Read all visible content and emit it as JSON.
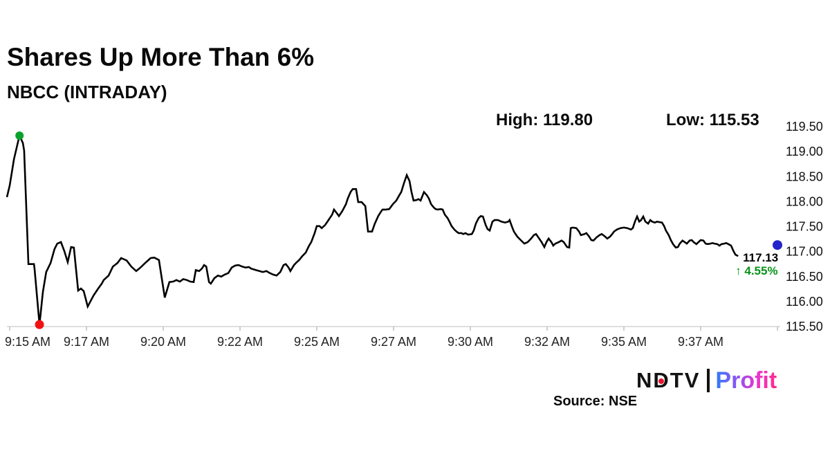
{
  "header": {
    "title": "Shares Up More Than 6%",
    "subtitle": "NBCC (INTRADAY)"
  },
  "stats": {
    "high": "High: 119.80",
    "low": "Low: 115.53"
  },
  "footer": {
    "source": "Source: NSE"
  },
  "logo": {
    "ndtv_n": "N",
    "ndtv_d": "D",
    "ndtv_tv": "TV",
    "profit": "Profit",
    "red_dot_color": "#e8142a"
  },
  "chart_data": {
    "type": "line",
    "title": "NBCC (INTRADAY)",
    "x_unit": "minutes after 9:15 AM",
    "high_value": 119.8,
    "low_value": 115.53,
    "last_price_label": "117.13",
    "change_label": "↑ 4.55%",
    "change_color": "#089419",
    "line_color": "#000000",
    "grid": "off",
    "ylim": [
      115.5,
      119.5
    ],
    "y_ticks": [
      "119.50",
      "119.00",
      "118.50",
      "118.00",
      "117.50",
      "117.00",
      "116.50",
      "116.00",
      "115.50"
    ],
    "x_ticks": [
      {
        "t": 0,
        "label": "9:15 AM"
      },
      {
        "t": 2.5,
        "label": "9:17 AM"
      },
      {
        "t": 5,
        "label": "9:20 AM"
      },
      {
        "t": 7.5,
        "label": "9:22 AM"
      },
      {
        "t": 10,
        "label": "9:25 AM"
      },
      {
        "t": 12.5,
        "label": "9:27 AM"
      },
      {
        "t": 15,
        "label": "9:30 AM"
      },
      {
        "t": 17.5,
        "label": "9:32 AM"
      },
      {
        "t": 20,
        "label": "9:35 AM"
      },
      {
        "t": 22.5,
        "label": "9:37 AM"
      },
      {
        "t": 25,
        "label": ""
      }
    ],
    "markers": {
      "session_high": {
        "t": 0.32,
        "p": 119.32,
        "color": "#0aa22c"
      },
      "session_low": {
        "t": 0.97,
        "p": 115.54,
        "color": "#f21111"
      },
      "last": {
        "t": 25.0,
        "p": 117.13,
        "color": "#2424cb"
      }
    },
    "points": [
      [
        -0.09,
        118.09
      ],
      [
        0,
        118.32
      ],
      [
        0.14,
        118.85
      ],
      [
        0.32,
        119.32
      ],
      [
        0.43,
        119.17
      ],
      [
        0.47,
        119.02
      ],
      [
        0.54,
        117.88
      ],
      [
        0.61,
        116.75
      ],
      [
        0.79,
        116.75
      ],
      [
        0.81,
        116.65
      ],
      [
        0.97,
        115.54
      ],
      [
        1.08,
        116.19
      ],
      [
        1.19,
        116.59
      ],
      [
        1.33,
        116.77
      ],
      [
        1.46,
        117.05
      ],
      [
        1.55,
        117.16
      ],
      [
        1.67,
        117.19
      ],
      [
        1.78,
        117.01
      ],
      [
        1.89,
        116.79
      ],
      [
        2.0,
        117.09
      ],
      [
        2.09,
        117.08
      ],
      [
        2.23,
        116.22
      ],
      [
        2.32,
        116.26
      ],
      [
        2.41,
        116.21
      ],
      [
        2.54,
        115.9
      ],
      [
        2.73,
        116.12
      ],
      [
        2.88,
        116.26
      ],
      [
        3.0,
        116.36
      ],
      [
        3.06,
        116.43
      ],
      [
        3.22,
        116.52
      ],
      [
        3.36,
        116.7
      ],
      [
        3.51,
        116.77
      ],
      [
        3.63,
        116.87
      ],
      [
        3.81,
        116.82
      ],
      [
        3.96,
        116.7
      ],
      [
        4.12,
        116.61
      ],
      [
        4.26,
        116.68
      ],
      [
        4.41,
        116.77
      ],
      [
        4.59,
        116.87
      ],
      [
        4.71,
        116.88
      ],
      [
        4.86,
        116.83
      ],
      [
        5.05,
        116.08
      ],
      [
        5.2,
        116.39
      ],
      [
        5.32,
        116.4
      ],
      [
        5.43,
        116.43
      ],
      [
        5.54,
        116.4
      ],
      [
        5.65,
        116.45
      ],
      [
        5.77,
        116.43
      ],
      [
        5.88,
        116.4
      ],
      [
        5.99,
        116.39
      ],
      [
        6.06,
        116.63
      ],
      [
        6.17,
        116.61
      ],
      [
        6.26,
        116.66
      ],
      [
        6.33,
        116.73
      ],
      [
        6.4,
        116.7
      ],
      [
        6.49,
        116.39
      ],
      [
        6.55,
        116.36
      ],
      [
        6.67,
        116.47
      ],
      [
        6.78,
        116.52
      ],
      [
        6.89,
        116.5
      ],
      [
        7.0,
        116.54
      ],
      [
        7.12,
        116.57
      ],
      [
        7.23,
        116.68
      ],
      [
        7.34,
        116.72
      ],
      [
        7.45,
        116.73
      ],
      [
        7.57,
        116.7
      ],
      [
        7.68,
        116.68
      ],
      [
        7.79,
        116.69
      ],
      [
        7.86,
        116.66
      ],
      [
        8.02,
        116.63
      ],
      [
        8.13,
        116.61
      ],
      [
        8.24,
        116.59
      ],
      [
        8.36,
        116.61
      ],
      [
        8.47,
        116.57
      ],
      [
        8.58,
        116.54
      ],
      [
        8.69,
        116.52
      ],
      [
        8.81,
        116.59
      ],
      [
        8.92,
        116.73
      ],
      [
        8.99,
        116.75
      ],
      [
        9.08,
        116.68
      ],
      [
        9.14,
        116.61
      ],
      [
        9.26,
        116.73
      ],
      [
        9.32,
        116.77
      ],
      [
        9.44,
        116.84
      ],
      [
        9.53,
        116.91
      ],
      [
        9.64,
        116.98
      ],
      [
        9.75,
        117.12
      ],
      [
        9.82,
        117.19
      ],
      [
        9.93,
        117.37
      ],
      [
        10.0,
        117.51
      ],
      [
        10.09,
        117.51
      ],
      [
        10.16,
        117.47
      ],
      [
        10.27,
        117.53
      ],
      [
        10.38,
        117.63
      ],
      [
        10.5,
        117.74
      ],
      [
        10.56,
        117.84
      ],
      [
        10.65,
        117.77
      ],
      [
        10.72,
        117.71
      ],
      [
        10.83,
        117.81
      ],
      [
        10.95,
        117.95
      ],
      [
        11.01,
        118.06
      ],
      [
        11.1,
        118.19
      ],
      [
        11.17,
        118.25
      ],
      [
        11.28,
        118.25
      ],
      [
        11.35,
        117.99
      ],
      [
        11.46,
        117.99
      ],
      [
        11.58,
        117.91
      ],
      [
        11.67,
        117.4
      ],
      [
        11.8,
        117.4
      ],
      [
        11.89,
        117.56
      ],
      [
        12.0,
        117.71
      ],
      [
        12.07,
        117.78
      ],
      [
        12.14,
        117.84
      ],
      [
        12.25,
        117.84
      ],
      [
        12.36,
        117.85
      ],
      [
        12.48,
        117.95
      ],
      [
        12.59,
        118.02
      ],
      [
        12.68,
        118.12
      ],
      [
        12.75,
        118.19
      ],
      [
        12.84,
        118.37
      ],
      [
        12.93,
        118.53
      ],
      [
        13.02,
        118.41
      ],
      [
        13.08,
        118.2
      ],
      [
        13.15,
        118.02
      ],
      [
        13.24,
        118.03
      ],
      [
        13.31,
        118.05
      ],
      [
        13.38,
        118.02
      ],
      [
        13.47,
        118.16
      ],
      [
        13.49,
        118.19
      ],
      [
        13.58,
        118.13
      ],
      [
        13.65,
        118.06
      ],
      [
        13.72,
        117.95
      ],
      [
        13.81,
        117.88
      ],
      [
        13.87,
        117.85
      ],
      [
        13.94,
        117.84
      ],
      [
        14.03,
        117.85
      ],
      [
        14.1,
        117.84
      ],
      [
        14.17,
        117.74
      ],
      [
        14.26,
        117.67
      ],
      [
        14.32,
        117.6
      ],
      [
        14.39,
        117.51
      ],
      [
        14.48,
        117.44
      ],
      [
        14.55,
        117.4
      ],
      [
        14.62,
        117.37
      ],
      [
        14.71,
        117.37
      ],
      [
        14.77,
        117.35
      ],
      [
        14.84,
        117.37
      ],
      [
        14.93,
        117.34
      ],
      [
        15.05,
        117.35
      ],
      [
        15.11,
        117.42
      ],
      [
        15.18,
        117.56
      ],
      [
        15.27,
        117.67
      ],
      [
        15.34,
        117.71
      ],
      [
        15.41,
        117.7
      ],
      [
        15.5,
        117.53
      ],
      [
        15.56,
        117.45
      ],
      [
        15.63,
        117.42
      ],
      [
        15.72,
        117.6
      ],
      [
        15.79,
        117.63
      ],
      [
        15.9,
        117.63
      ],
      [
        16.01,
        117.6
      ],
      [
        16.13,
        117.58
      ],
      [
        16.24,
        117.6
      ],
      [
        16.28,
        117.63
      ],
      [
        16.35,
        117.51
      ],
      [
        16.42,
        117.4
      ],
      [
        16.53,
        117.3
      ],
      [
        16.64,
        117.23
      ],
      [
        16.76,
        117.16
      ],
      [
        16.87,
        117.19
      ],
      [
        16.98,
        117.26
      ],
      [
        17.07,
        117.33
      ],
      [
        17.14,
        117.35
      ],
      [
        17.21,
        117.29
      ],
      [
        17.32,
        117.19
      ],
      [
        17.41,
        117.09
      ],
      [
        17.48,
        117.19
      ],
      [
        17.55,
        117.26
      ],
      [
        17.64,
        117.19
      ],
      [
        17.7,
        117.12
      ],
      [
        17.77,
        117.16
      ],
      [
        17.88,
        117.19
      ],
      [
        17.97,
        117.22
      ],
      [
        18.04,
        117.19
      ],
      [
        18.15,
        117.09
      ],
      [
        18.22,
        117.08
      ],
      [
        18.27,
        117.47
      ],
      [
        18.33,
        117.48
      ],
      [
        18.45,
        117.47
      ],
      [
        18.54,
        117.4
      ],
      [
        18.6,
        117.33
      ],
      [
        18.72,
        117.35
      ],
      [
        18.78,
        117.37
      ],
      [
        18.87,
        117.3
      ],
      [
        18.94,
        117.23
      ],
      [
        19.01,
        117.22
      ],
      [
        19.12,
        117.29
      ],
      [
        19.21,
        117.33
      ],
      [
        19.28,
        117.35
      ],
      [
        19.39,
        117.3
      ],
      [
        19.46,
        117.26
      ],
      [
        19.55,
        117.3
      ],
      [
        19.62,
        117.35
      ],
      [
        19.68,
        117.4
      ],
      [
        19.77,
        117.44
      ],
      [
        19.89,
        117.47
      ],
      [
        20.0,
        117.48
      ],
      [
        20.11,
        117.47
      ],
      [
        20.23,
        117.44
      ],
      [
        20.29,
        117.47
      ],
      [
        20.36,
        117.6
      ],
      [
        20.43,
        117.7
      ],
      [
        20.5,
        117.6
      ],
      [
        20.56,
        117.63
      ],
      [
        20.63,
        117.7
      ],
      [
        20.7,
        117.6
      ],
      [
        20.79,
        117.56
      ],
      [
        20.86,
        117.63
      ],
      [
        20.92,
        117.6
      ],
      [
        21.01,
        117.58
      ],
      [
        21.08,
        117.6
      ],
      [
        21.15,
        117.59
      ],
      [
        21.24,
        117.58
      ],
      [
        21.31,
        117.51
      ],
      [
        21.37,
        117.42
      ],
      [
        21.46,
        117.33
      ],
      [
        21.53,
        117.23
      ],
      [
        21.6,
        117.15
      ],
      [
        21.69,
        117.08
      ],
      [
        21.76,
        117.09
      ],
      [
        21.82,
        117.16
      ],
      [
        21.91,
        117.22
      ],
      [
        21.98,
        117.19
      ],
      [
        22.05,
        117.16
      ],
      [
        22.14,
        117.22
      ],
      [
        22.21,
        117.23
      ],
      [
        22.27,
        117.19
      ],
      [
        22.36,
        117.15
      ],
      [
        22.43,
        117.19
      ],
      [
        22.5,
        117.23
      ],
      [
        22.59,
        117.22
      ],
      [
        22.66,
        117.16
      ],
      [
        22.73,
        117.15
      ],
      [
        22.82,
        117.16
      ],
      [
        22.88,
        117.17
      ],
      [
        22.95,
        117.16
      ],
      [
        23.04,
        117.15
      ],
      [
        23.11,
        117.12
      ],
      [
        23.18,
        117.15
      ],
      [
        23.27,
        117.16
      ],
      [
        23.33,
        117.17
      ],
      [
        23.4,
        117.15
      ],
      [
        23.49,
        117.12
      ],
      [
        23.56,
        117.02
      ],
      [
        23.63,
        116.94
      ],
      [
        23.72,
        116.91
      ]
    ]
  }
}
